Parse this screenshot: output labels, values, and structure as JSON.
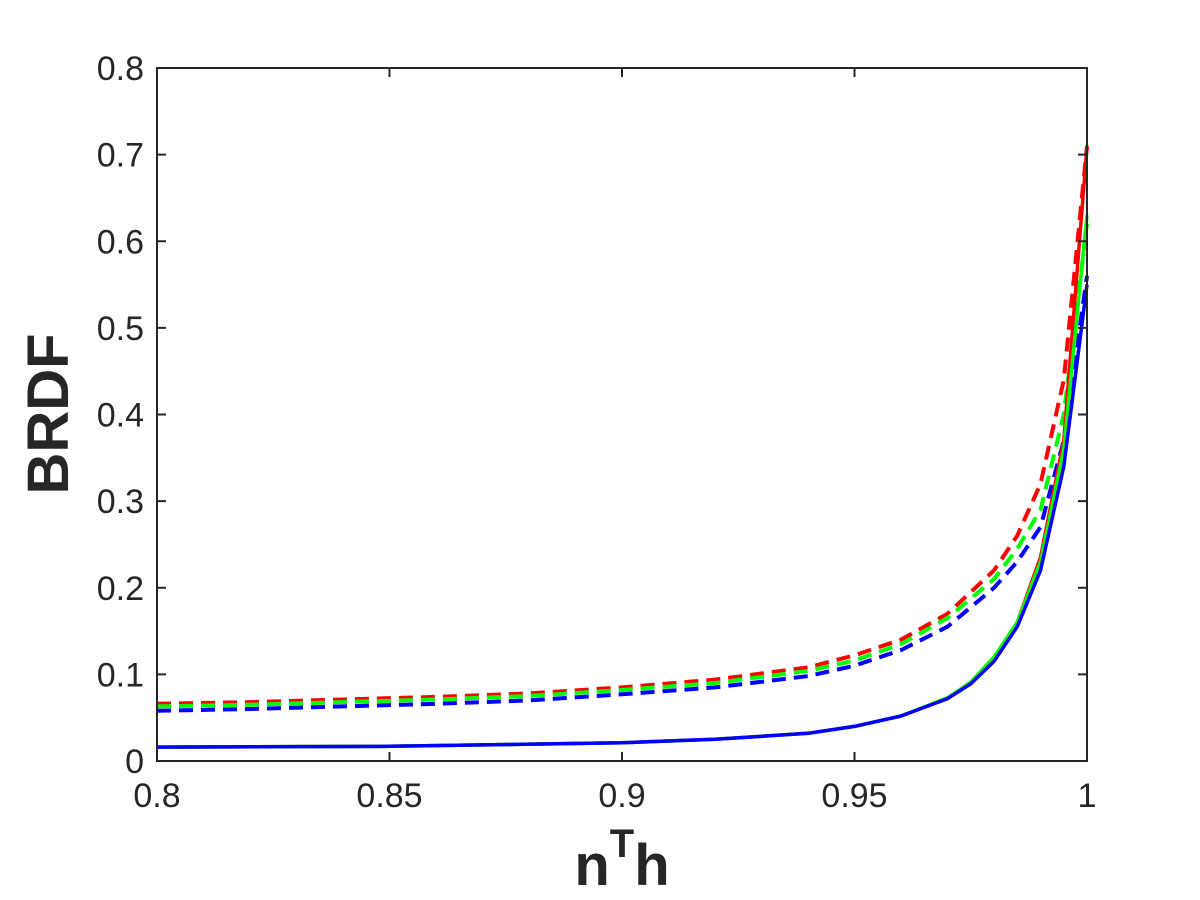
{
  "chart_data": {
    "type": "line",
    "xlabel_base": "n",
    "xlabel_sup": "T",
    "xlabel_tail": "h",
    "ylabel": "BRDF",
    "xlim": [
      0.8,
      1.0
    ],
    "ylim": [
      0,
      0.8
    ],
    "x_ticks": [
      0.8,
      0.85,
      0.9,
      0.95,
      1.0
    ],
    "x_tick_labels": [
      "0.8",
      "0.85",
      "0.9",
      "0.95",
      "1"
    ],
    "y_ticks": [
      0,
      0.1,
      0.2,
      0.3,
      0.4,
      0.5,
      0.6,
      0.7,
      0.8
    ],
    "y_tick_labels": [
      "0",
      "0.1",
      "0.2",
      "0.3",
      "0.4",
      "0.5",
      "0.6",
      "0.7",
      "0.8"
    ],
    "grid": false,
    "legend": "none",
    "series": [
      {
        "color": "#ff0000",
        "style": "dashed",
        "x": [
          0.8,
          0.82,
          0.84,
          0.86,
          0.88,
          0.9,
          0.92,
          0.94,
          0.95,
          0.96,
          0.97,
          0.98,
          0.985,
          0.99,
          0.995,
          1.0
        ],
        "y": [
          0.066,
          0.068,
          0.071,
          0.074,
          0.078,
          0.085,
          0.094,
          0.108,
          0.122,
          0.14,
          0.17,
          0.22,
          0.26,
          0.32,
          0.44,
          0.71
        ]
      },
      {
        "color": "#00ff00",
        "style": "dashed",
        "x": [
          0.8,
          0.82,
          0.84,
          0.86,
          0.88,
          0.9,
          0.92,
          0.94,
          0.95,
          0.96,
          0.97,
          0.98,
          0.985,
          0.99,
          0.995,
          1.0
        ],
        "y": [
          0.063,
          0.065,
          0.068,
          0.071,
          0.075,
          0.082,
          0.09,
          0.104,
          0.116,
          0.135,
          0.165,
          0.21,
          0.245,
          0.29,
          0.4,
          0.62
        ]
      },
      {
        "color": "#0000ff",
        "style": "dashed",
        "x": [
          0.8,
          0.82,
          0.84,
          0.86,
          0.88,
          0.9,
          0.92,
          0.94,
          0.95,
          0.96,
          0.97,
          0.98,
          0.985,
          0.99,
          0.995,
          1.0
        ],
        "y": [
          0.058,
          0.06,
          0.063,
          0.066,
          0.07,
          0.077,
          0.085,
          0.098,
          0.11,
          0.128,
          0.155,
          0.2,
          0.23,
          0.27,
          0.37,
          0.56
        ]
      },
      {
        "color": "#ff0000",
        "style": "solid",
        "x": [
          0.8,
          0.85,
          0.9,
          0.92,
          0.94,
          0.95,
          0.96,
          0.97,
          0.975,
          0.98,
          0.985,
          0.99,
          0.995,
          1.0
        ],
        "y": [
          0.016,
          0.017,
          0.021,
          0.025,
          0.032,
          0.04,
          0.052,
          0.072,
          0.09,
          0.118,
          0.16,
          0.235,
          0.37,
          0.71
        ]
      },
      {
        "color": "#00ff00",
        "style": "solid",
        "x": [
          0.8,
          0.85,
          0.9,
          0.92,
          0.94,
          0.95,
          0.96,
          0.97,
          0.975,
          0.98,
          0.985,
          0.99,
          0.995,
          1.0
        ],
        "y": [
          0.016,
          0.017,
          0.021,
          0.025,
          0.032,
          0.04,
          0.052,
          0.073,
          0.091,
          0.12,
          0.16,
          0.23,
          0.36,
          0.63
        ]
      },
      {
        "color": "#0000ff",
        "style": "solid",
        "x": [
          0.8,
          0.85,
          0.9,
          0.92,
          0.94,
          0.95,
          0.96,
          0.97,
          0.975,
          0.98,
          0.985,
          0.99,
          0.995,
          1.0
        ],
        "y": [
          0.016,
          0.017,
          0.021,
          0.025,
          0.032,
          0.04,
          0.052,
          0.072,
          0.089,
          0.115,
          0.155,
          0.22,
          0.34,
          0.55
        ]
      }
    ]
  }
}
